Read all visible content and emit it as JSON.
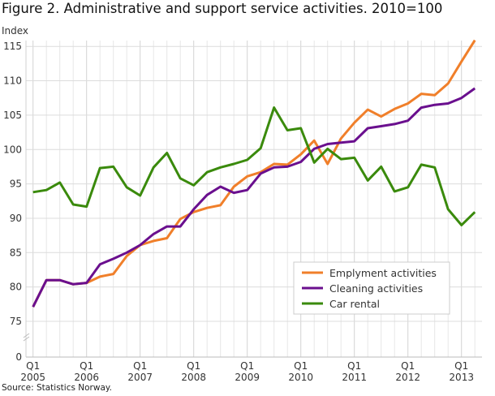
{
  "title": "Figure 2. Administrative and support service activities. 2010=100",
  "source": "Source: Statistics Norway.",
  "chart_data": {
    "type": "line",
    "title": "Figure 2. Administrative and support service activities. 2010=100",
    "ylabel": "Index",
    "xlabel": "",
    "yticks": [
      0,
      75,
      80,
      85,
      90,
      95,
      100,
      105,
      110,
      115
    ],
    "ylim": [
      75,
      115
    ],
    "y_axis_break": "between 0 and 75",
    "grid": true,
    "legend_position": "bottom-right",
    "x": [
      "2005Q1",
      "2005Q2",
      "2005Q3",
      "2005Q4",
      "2006Q1",
      "2006Q2",
      "2006Q3",
      "2006Q4",
      "2007Q1",
      "2007Q2",
      "2007Q3",
      "2007Q4",
      "2008Q1",
      "2008Q2",
      "2008Q3",
      "2008Q4",
      "2009Q1",
      "2009Q2",
      "2009Q3",
      "2009Q4",
      "2010Q1",
      "2010Q2",
      "2010Q3",
      "2010Q4",
      "2011Q1",
      "2011Q2",
      "2011Q3",
      "2011Q4",
      "2012Q1",
      "2012Q2",
      "2012Q3",
      "2012Q4",
      "2013Q1",
      "2013Q2"
    ],
    "xtick_labels": [
      {
        "q": "Q1",
        "year": "2005"
      },
      {
        "q": "Q1",
        "year": "2006"
      },
      {
        "q": "Q1",
        "year": "2007"
      },
      {
        "q": "Q1",
        "year": "2008"
      },
      {
        "q": "Q1",
        "year": "2009"
      },
      {
        "q": "Q1",
        "year": "2010"
      },
      {
        "q": "Q1",
        "year": "2011"
      },
      {
        "q": "Q1",
        "year": "2012"
      },
      {
        "q": "Q1",
        "year": "2013"
      }
    ],
    "series": [
      {
        "name": "Emplyment activities",
        "color": "#f07f2a",
        "values": [
          77.1,
          81.0,
          81.0,
          80.4,
          80.6,
          81.5,
          81.9,
          84.5,
          86.1,
          86.7,
          87.1,
          89.9,
          90.9,
          91.5,
          91.9,
          94.6,
          96.1,
          96.7,
          97.9,
          97.8,
          99.3,
          101.3,
          97.9,
          101.6,
          103.9,
          105.8,
          104.8,
          105.9,
          106.7,
          108.1,
          107.9,
          109.6,
          112.8,
          115.9
        ]
      },
      {
        "name": "Cleaning activities",
        "color": "#6a0f8e",
        "values": [
          77.1,
          81.0,
          81.0,
          80.4,
          80.6,
          83.3,
          84.1,
          85.0,
          86.1,
          87.7,
          88.8,
          88.8,
          91.3,
          93.4,
          94.6,
          93.7,
          94.1,
          96.5,
          97.4,
          97.5,
          98.2,
          100.1,
          100.8,
          101.0,
          101.2,
          103.1,
          103.4,
          103.7,
          104.2,
          106.1,
          106.5,
          106.7,
          107.5,
          108.9
        ]
      },
      {
        "name": "Car rental",
        "color": "#3a8a0c",
        "values": [
          93.8,
          94.1,
          95.2,
          92.0,
          91.7,
          97.3,
          97.5,
          94.5,
          93.3,
          97.4,
          99.5,
          95.8,
          94.8,
          96.7,
          97.4,
          97.9,
          98.5,
          100.2,
          106.1,
          102.8,
          103.1,
          98.1,
          100.1,
          98.6,
          98.8,
          95.5,
          97.5,
          93.9,
          94.5,
          97.8,
          97.4,
          91.3,
          89.0,
          90.9
        ]
      }
    ]
  }
}
